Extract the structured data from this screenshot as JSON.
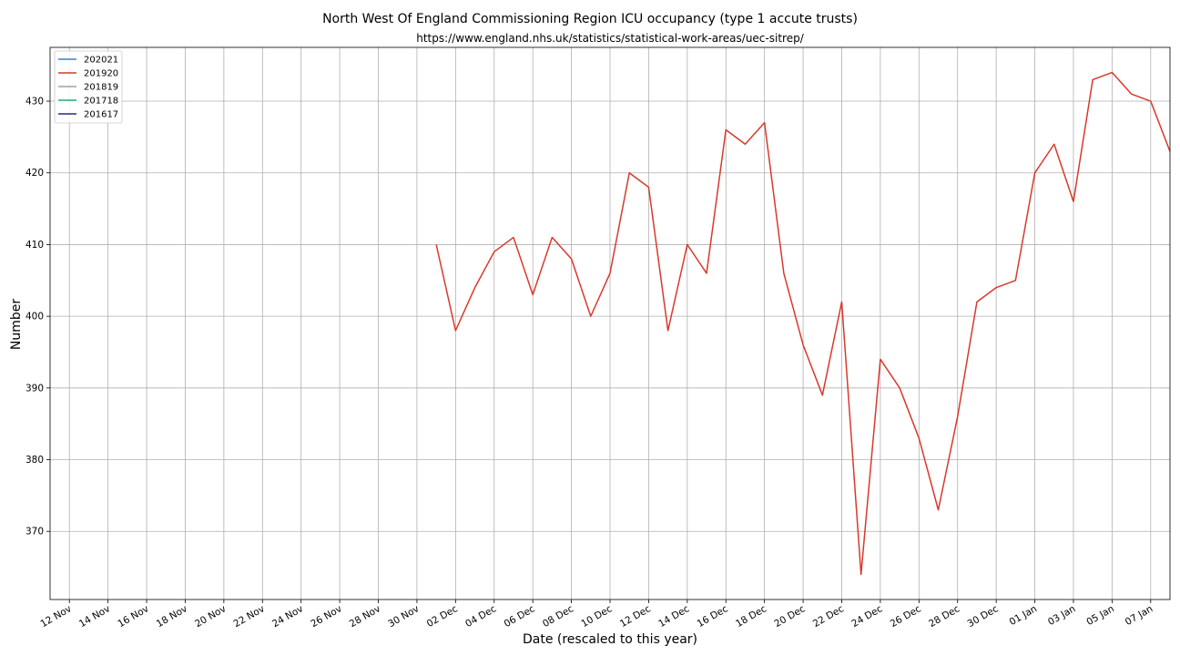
{
  "chart_data": {
    "type": "line",
    "title": "North West Of England Commissioning Region ICU occupancy (type 1 accute trusts)",
    "subtitle": "https://www.england.nhs.uk/statistics/statistical-work-areas/uec-sitrep/",
    "xlabel": "Date (rescaled to this year)",
    "ylabel": "Number",
    "x_dates": [
      "11 Nov",
      "12 Nov",
      "13 Nov",
      "14 Nov",
      "15 Nov",
      "16 Nov",
      "17 Nov",
      "18 Nov",
      "19 Nov",
      "20 Nov",
      "21 Nov",
      "22 Nov",
      "23 Nov",
      "24 Nov",
      "25 Nov",
      "26 Nov",
      "27 Nov",
      "28 Nov",
      "29 Nov",
      "30 Nov",
      "01 Dec",
      "02 Dec",
      "03 Dec",
      "04 Dec",
      "05 Dec",
      "06 Dec",
      "07 Dec",
      "08 Dec",
      "09 Dec",
      "10 Dec",
      "11 Dec",
      "12 Dec",
      "13 Dec",
      "14 Dec",
      "15 Dec",
      "16 Dec",
      "17 Dec",
      "18 Dec",
      "19 Dec",
      "20 Dec",
      "21 Dec",
      "22 Dec",
      "23 Dec",
      "24 Dec",
      "25 Dec",
      "26 Dec",
      "27 Dec",
      "28 Dec",
      "29 Dec",
      "30 Dec",
      "31 Dec",
      "01 Jan",
      "02 Jan",
      "03 Jan",
      "04 Jan",
      "05 Jan",
      "06 Jan",
      "07 Jan",
      "08 Jan"
    ],
    "xlim": [
      "11 Nov",
      "08 Jan"
    ],
    "x_ticks": [
      "12 Nov",
      "14 Nov",
      "16 Nov",
      "18 Nov",
      "20 Nov",
      "22 Nov",
      "24 Nov",
      "26 Nov",
      "28 Nov",
      "30 Nov",
      "02 Dec",
      "04 Dec",
      "06 Dec",
      "08 Dec",
      "10 Dec",
      "12 Dec",
      "14 Dec",
      "16 Dec",
      "18 Dec",
      "20 Dec",
      "22 Dec",
      "24 Dec",
      "26 Dec",
      "28 Dec",
      "30 Dec",
      "01 Jan",
      "03 Jan",
      "05 Jan",
      "07 Jan"
    ],
    "ylim": [
      360.5,
      437.5
    ],
    "y_ticks": [
      370,
      380,
      390,
      400,
      410,
      420,
      430
    ],
    "grid": true,
    "legend_position": "top-left",
    "series": [
      {
        "name": "202021",
        "color": "#3a7fd5",
        "points": []
      },
      {
        "name": "201920",
        "color": "#d9392b",
        "points": [
          [
            "01 Dec",
            410
          ],
          [
            "02 Dec",
            398
          ],
          [
            "03 Dec",
            404
          ],
          [
            "04 Dec",
            409
          ],
          [
            "05 Dec",
            411
          ],
          [
            "06 Dec",
            403
          ],
          [
            "07 Dec",
            411
          ],
          [
            "08 Dec",
            408
          ],
          [
            "09 Dec",
            400
          ],
          [
            "10 Dec",
            406
          ],
          [
            "11 Dec",
            420
          ],
          [
            "12 Dec",
            418
          ],
          [
            "13 Dec",
            398
          ],
          [
            "14 Dec",
            410
          ],
          [
            "15 Dec",
            406
          ],
          [
            "16 Dec",
            426
          ],
          [
            "17 Dec",
            424
          ],
          [
            "18 Dec",
            427
          ],
          [
            "19 Dec",
            406
          ],
          [
            "20 Dec",
            396
          ],
          [
            "21 Dec",
            389
          ],
          [
            "22 Dec",
            402
          ],
          [
            "23 Dec",
            364
          ],
          [
            "24 Dec",
            394
          ],
          [
            "25 Dec",
            390
          ],
          [
            "26 Dec",
            383
          ],
          [
            "27 Dec",
            373
          ],
          [
            "28 Dec",
            386
          ],
          [
            "29 Dec",
            402
          ],
          [
            "30 Dec",
            404
          ],
          [
            "31 Dec",
            405
          ],
          [
            "01 Jan",
            420
          ],
          [
            "02 Jan",
            424
          ],
          [
            "03 Jan",
            416
          ],
          [
            "04 Jan",
            433
          ],
          [
            "05 Jan",
            434
          ],
          [
            "06 Jan",
            431
          ],
          [
            "07 Jan",
            430
          ],
          [
            "08 Jan",
            423
          ]
        ]
      },
      {
        "name": "201819",
        "color": "#a0a0a0",
        "points": []
      },
      {
        "name": "201718",
        "color": "#2ca87f",
        "points": []
      },
      {
        "name": "201617",
        "color": "#2b2a7a",
        "points": []
      }
    ]
  }
}
